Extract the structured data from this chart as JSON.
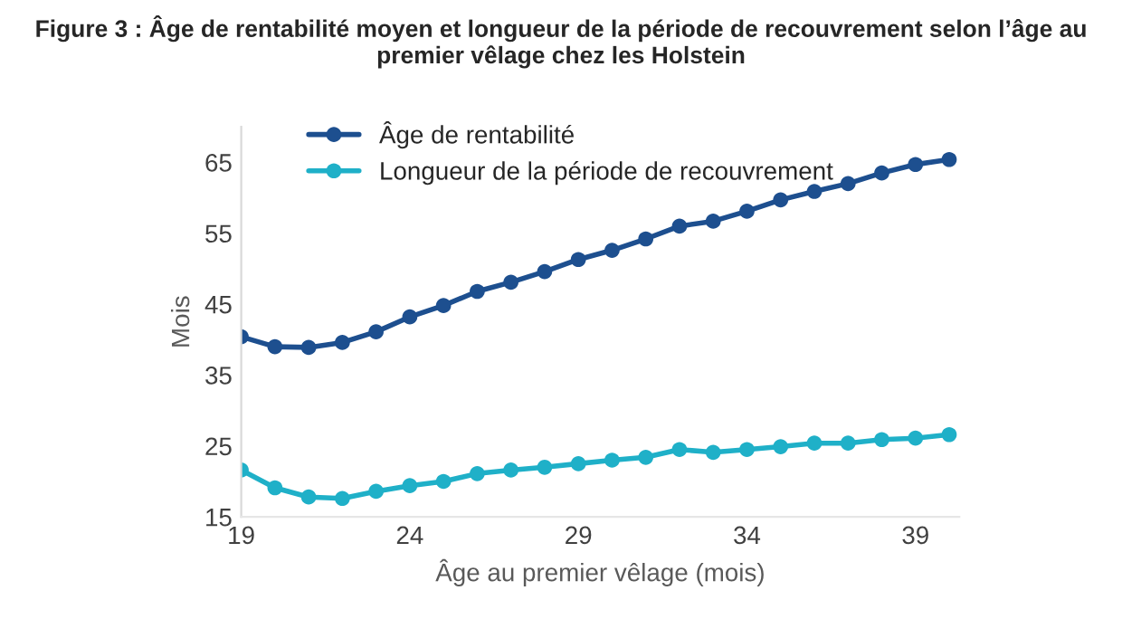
{
  "chart_data": {
    "type": "line",
    "title": "Figure 3 : Âge de rentabilité moyen et longueur de la période de recouvrement selon l’âge au premier vêlage chez les Holstein",
    "xlabel": "Âge au premier vêlage (mois)",
    "ylabel": "Mois",
    "x": [
      19,
      20,
      21,
      22,
      23,
      24,
      25,
      26,
      27,
      28,
      29,
      30,
      31,
      32,
      33,
      34,
      35,
      36,
      37,
      38,
      39,
      40
    ],
    "series": [
      {
        "name": "Âge de rentabilité",
        "color": "#1d4f8f",
        "values": [
          40.4,
          39.0,
          38.9,
          39.6,
          41.1,
          43.2,
          44.8,
          46.8,
          48.1,
          49.6,
          51.3,
          52.6,
          54.2,
          56.0,
          56.7,
          58.1,
          59.7,
          60.9,
          62.0,
          63.5,
          64.7,
          65.4
        ]
      },
      {
        "name": "Longueur de la période de recouvrement",
        "color": "#1fb0c8",
        "values": [
          21.6,
          19.1,
          17.8,
          17.6,
          18.6,
          19.4,
          20.0,
          21.1,
          21.6,
          22.0,
          22.5,
          23.0,
          23.4,
          24.5,
          24.1,
          24.5,
          24.9,
          25.4,
          25.4,
          25.9,
          26.1,
          26.6
        ]
      }
    ],
    "xlim": [
      19,
      40.3
    ],
    "xticks": [
      19,
      24,
      29,
      34,
      39
    ],
    "ylim": [
      15,
      70
    ],
    "yticks": [
      15,
      25,
      35,
      45,
      55,
      65
    ],
    "grid": false,
    "legend": "top left",
    "marker": "circle",
    "line_style": "solid"
  }
}
